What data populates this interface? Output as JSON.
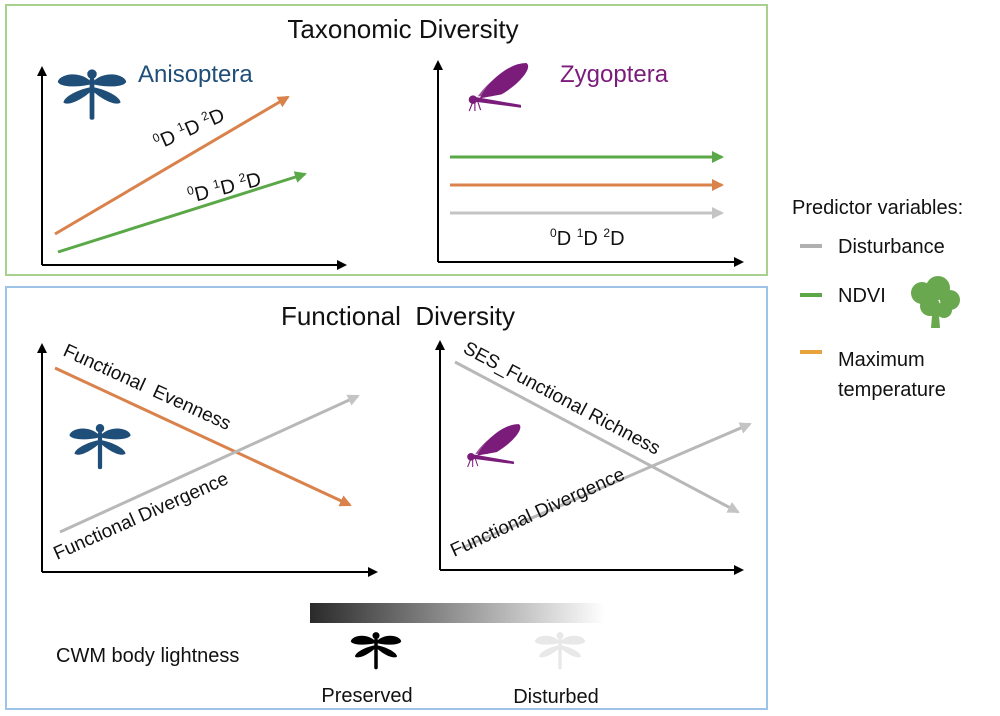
{
  "colors": {
    "green_border": "#a9d18e",
    "blue_border": "#9dc3e6",
    "orange": "#d9824b",
    "green": "#5aa847",
    "gray": "#b0b0b0",
    "anisoptera": "#1f4e79",
    "zygoptera": "#7b1c7b",
    "tree": "#6aa84f"
  },
  "taxonomic": {
    "title": "Taxonomic Diversity",
    "anisoptera": {
      "label": "Anisoptera",
      "icon": "dragonfly-icon",
      "orange_line_label": [
        "0",
        "D ",
        "1",
        "D ",
        "2",
        "D"
      ],
      "green_line_label": [
        "0",
        "D ",
        "1",
        "D ",
        "2",
        "D"
      ]
    },
    "zygoptera": {
      "label": "Zygoptera",
      "icon": "damselfly-icon",
      "lines_label": [
        "0",
        "D ",
        "1",
        "D ",
        "2",
        "D"
      ]
    }
  },
  "functional": {
    "title": "Functional  Diversity",
    "anisoptera": {
      "evenness_label": "Functional  Evenness",
      "divergence_label": "Functional Divergence"
    },
    "zygoptera": {
      "richness_label": "SES_Functional Richness",
      "divergence_label": "Functional Divergence"
    },
    "cwm": {
      "label": "CWM body lightness",
      "preserved": "Preserved",
      "disturbed": "Disturbed"
    }
  },
  "legend": {
    "title": "Predictor variables:",
    "items": [
      {
        "label": "Disturbance",
        "color": "#b0b0b0"
      },
      {
        "label": "NDVI",
        "color": "#5aa847",
        "icon": "tree-icon"
      },
      {
        "label": "Maximum",
        "label2": "temperature",
        "color": "#e8a33c"
      }
    ]
  }
}
